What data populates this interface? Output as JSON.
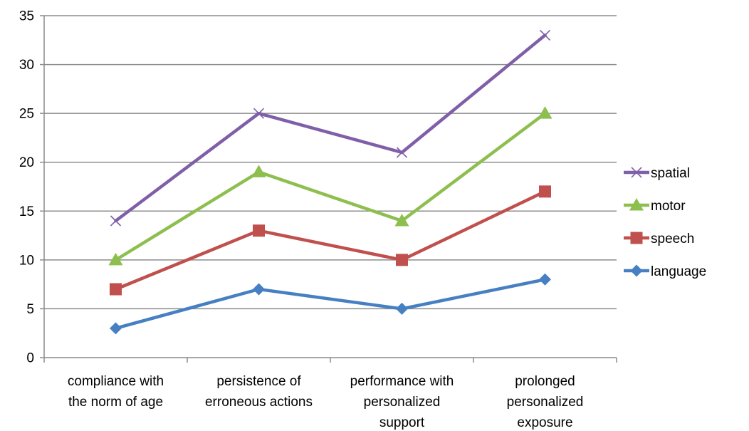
{
  "chart_data": {
    "type": "line",
    "title": "",
    "xlabel": "",
    "ylabel": "",
    "ylim": [
      0,
      35
    ],
    "ytick_step": 5,
    "grid": "horizontal",
    "legend_position": "right",
    "categories": [
      [
        "compliance with",
        "the norm of age"
      ],
      [
        "persistence of",
        "erroneous actions"
      ],
      [
        "performance with",
        "personalized",
        "support"
      ],
      [
        "prolonged",
        "personalized",
        "exposure"
      ]
    ],
    "series": [
      {
        "name": "spatial",
        "values": [
          14,
          25,
          21,
          33
        ],
        "color": "#7F5FA8",
        "marker": "x"
      },
      {
        "name": "motor",
        "values": [
          10,
          19,
          14,
          25
        ],
        "color": "#8DBF4F",
        "marker": "triangle"
      },
      {
        "name": "speech",
        "values": [
          7,
          13,
          10,
          17
        ],
        "color": "#C0504D",
        "marker": "square"
      },
      {
        "name": "language",
        "values": [
          3,
          7,
          5,
          8
        ],
        "color": "#4680C2",
        "marker": "diamond"
      }
    ]
  }
}
